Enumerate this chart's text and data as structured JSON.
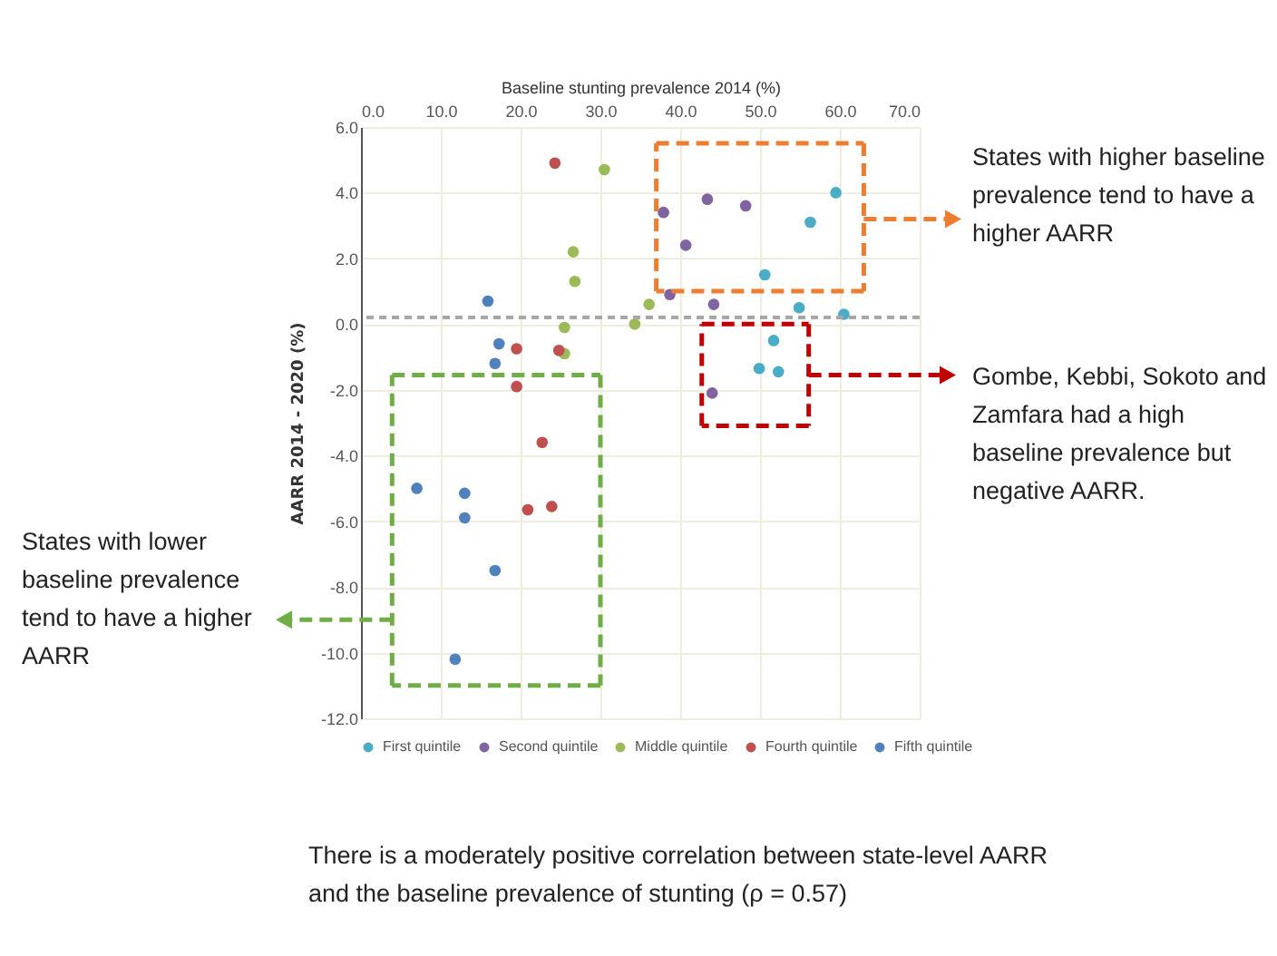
{
  "chart_data": {
    "type": "scatter",
    "xlabel": "Baseline stunting prevalence 2014 (%)",
    "ylabel": "AARR 2014 - 2020 (%)",
    "xlim": [
      0,
      70
    ],
    "xticks": [
      {
        "value": 0,
        "label": "0.0"
      },
      {
        "value": 10,
        "label": "10.0"
      },
      {
        "value": 20,
        "label": "20.0"
      },
      {
        "value": 30,
        "label": "30.0"
      },
      {
        "value": 40,
        "label": "40.0"
      },
      {
        "value": 50,
        "label": "50.0"
      },
      {
        "value": 60,
        "label": "60.0"
      },
      {
        "value": 70,
        "label": "70.0"
      }
    ],
    "ylim": [
      -12,
      6
    ],
    "yticks": [
      {
        "value": -12,
        "label": "-12.0"
      },
      {
        "value": -10,
        "label": "-10.0"
      },
      {
        "value": -8,
        "label": "-8.0"
      },
      {
        "value": -6,
        "label": "-6.0"
      },
      {
        "value": -4,
        "label": "-4.0"
      },
      {
        "value": -2,
        "label": "-2.0"
      },
      {
        "value": 0,
        "label": "0.0"
      },
      {
        "value": 2,
        "label": "2.0"
      },
      {
        "value": 4,
        "label": "4.0"
      },
      {
        "value": 6,
        "label": "6.0"
      }
    ],
    "grid": true,
    "legend": "bottom",
    "marker": "circle",
    "series": [
      {
        "name": "First quintile",
        "color": "#4bacc6",
        "x": [
          59.5,
          56.3,
          50.6,
          54.9,
          60.5,
          51.7,
          49.9,
          52.3
        ],
        "values": [
          4.0,
          3.1,
          1.5,
          0.5,
          0.3,
          -0.5,
          -1.35,
          -1.45
        ]
      },
      {
        "name": "Second quintile",
        "color": "#8064a2",
        "x": [
          37.9,
          43.4,
          48.2,
          40.7,
          38.7,
          44.2,
          44.0
        ],
        "values": [
          3.4,
          3.8,
          3.6,
          2.4,
          0.9,
          0.6,
          -2.1
        ]
      },
      {
        "name": "Middle quintile",
        "color": "#9bbb59",
        "x": [
          30.5,
          26.6,
          26.8,
          25.5,
          25.5,
          36.1,
          34.3
        ],
        "values": [
          4.7,
          2.2,
          1.3,
          -0.1,
          -0.9,
          0.6,
          0.0
        ]
      },
      {
        "name": "Fourth quintile",
        "color": "#c0504d",
        "x": [
          24.3,
          19.5,
          19.5,
          22.7,
          20.9,
          23.9,
          24.8
        ],
        "values": [
          4.9,
          -0.75,
          -1.9,
          -3.6,
          -5.65,
          -5.55,
          -0.8
        ]
      },
      {
        "name": "Fifth quintile",
        "color": "#4f81bd",
        "x": [
          15.9,
          17.3,
          16.8,
          7.0,
          13.0,
          13.0,
          16.8,
          11.8
        ],
        "values": [
          0.7,
          -0.6,
          -1.2,
          -5.0,
          -5.15,
          -5.9,
          -7.5,
          -10.2
        ]
      }
    ],
    "ref_lines": [
      {
        "axis": "y",
        "value": 0.2,
        "color": "#a6a6a6",
        "line_style": "dashed"
      }
    ],
    "annotations": [
      "States with higher baseline prevalence tend to have a higher AARR",
      "Gombe, Kebbi, Sokoto and Zamfara had a high baseline prevalence but negative AARR.",
      "States with lower baseline prevalence tend to have a higher AARR",
      "There is a moderately positive correlation between state-level AARR and the baseline prevalence of stunting (ρ = 0.57)"
    ]
  }
}
